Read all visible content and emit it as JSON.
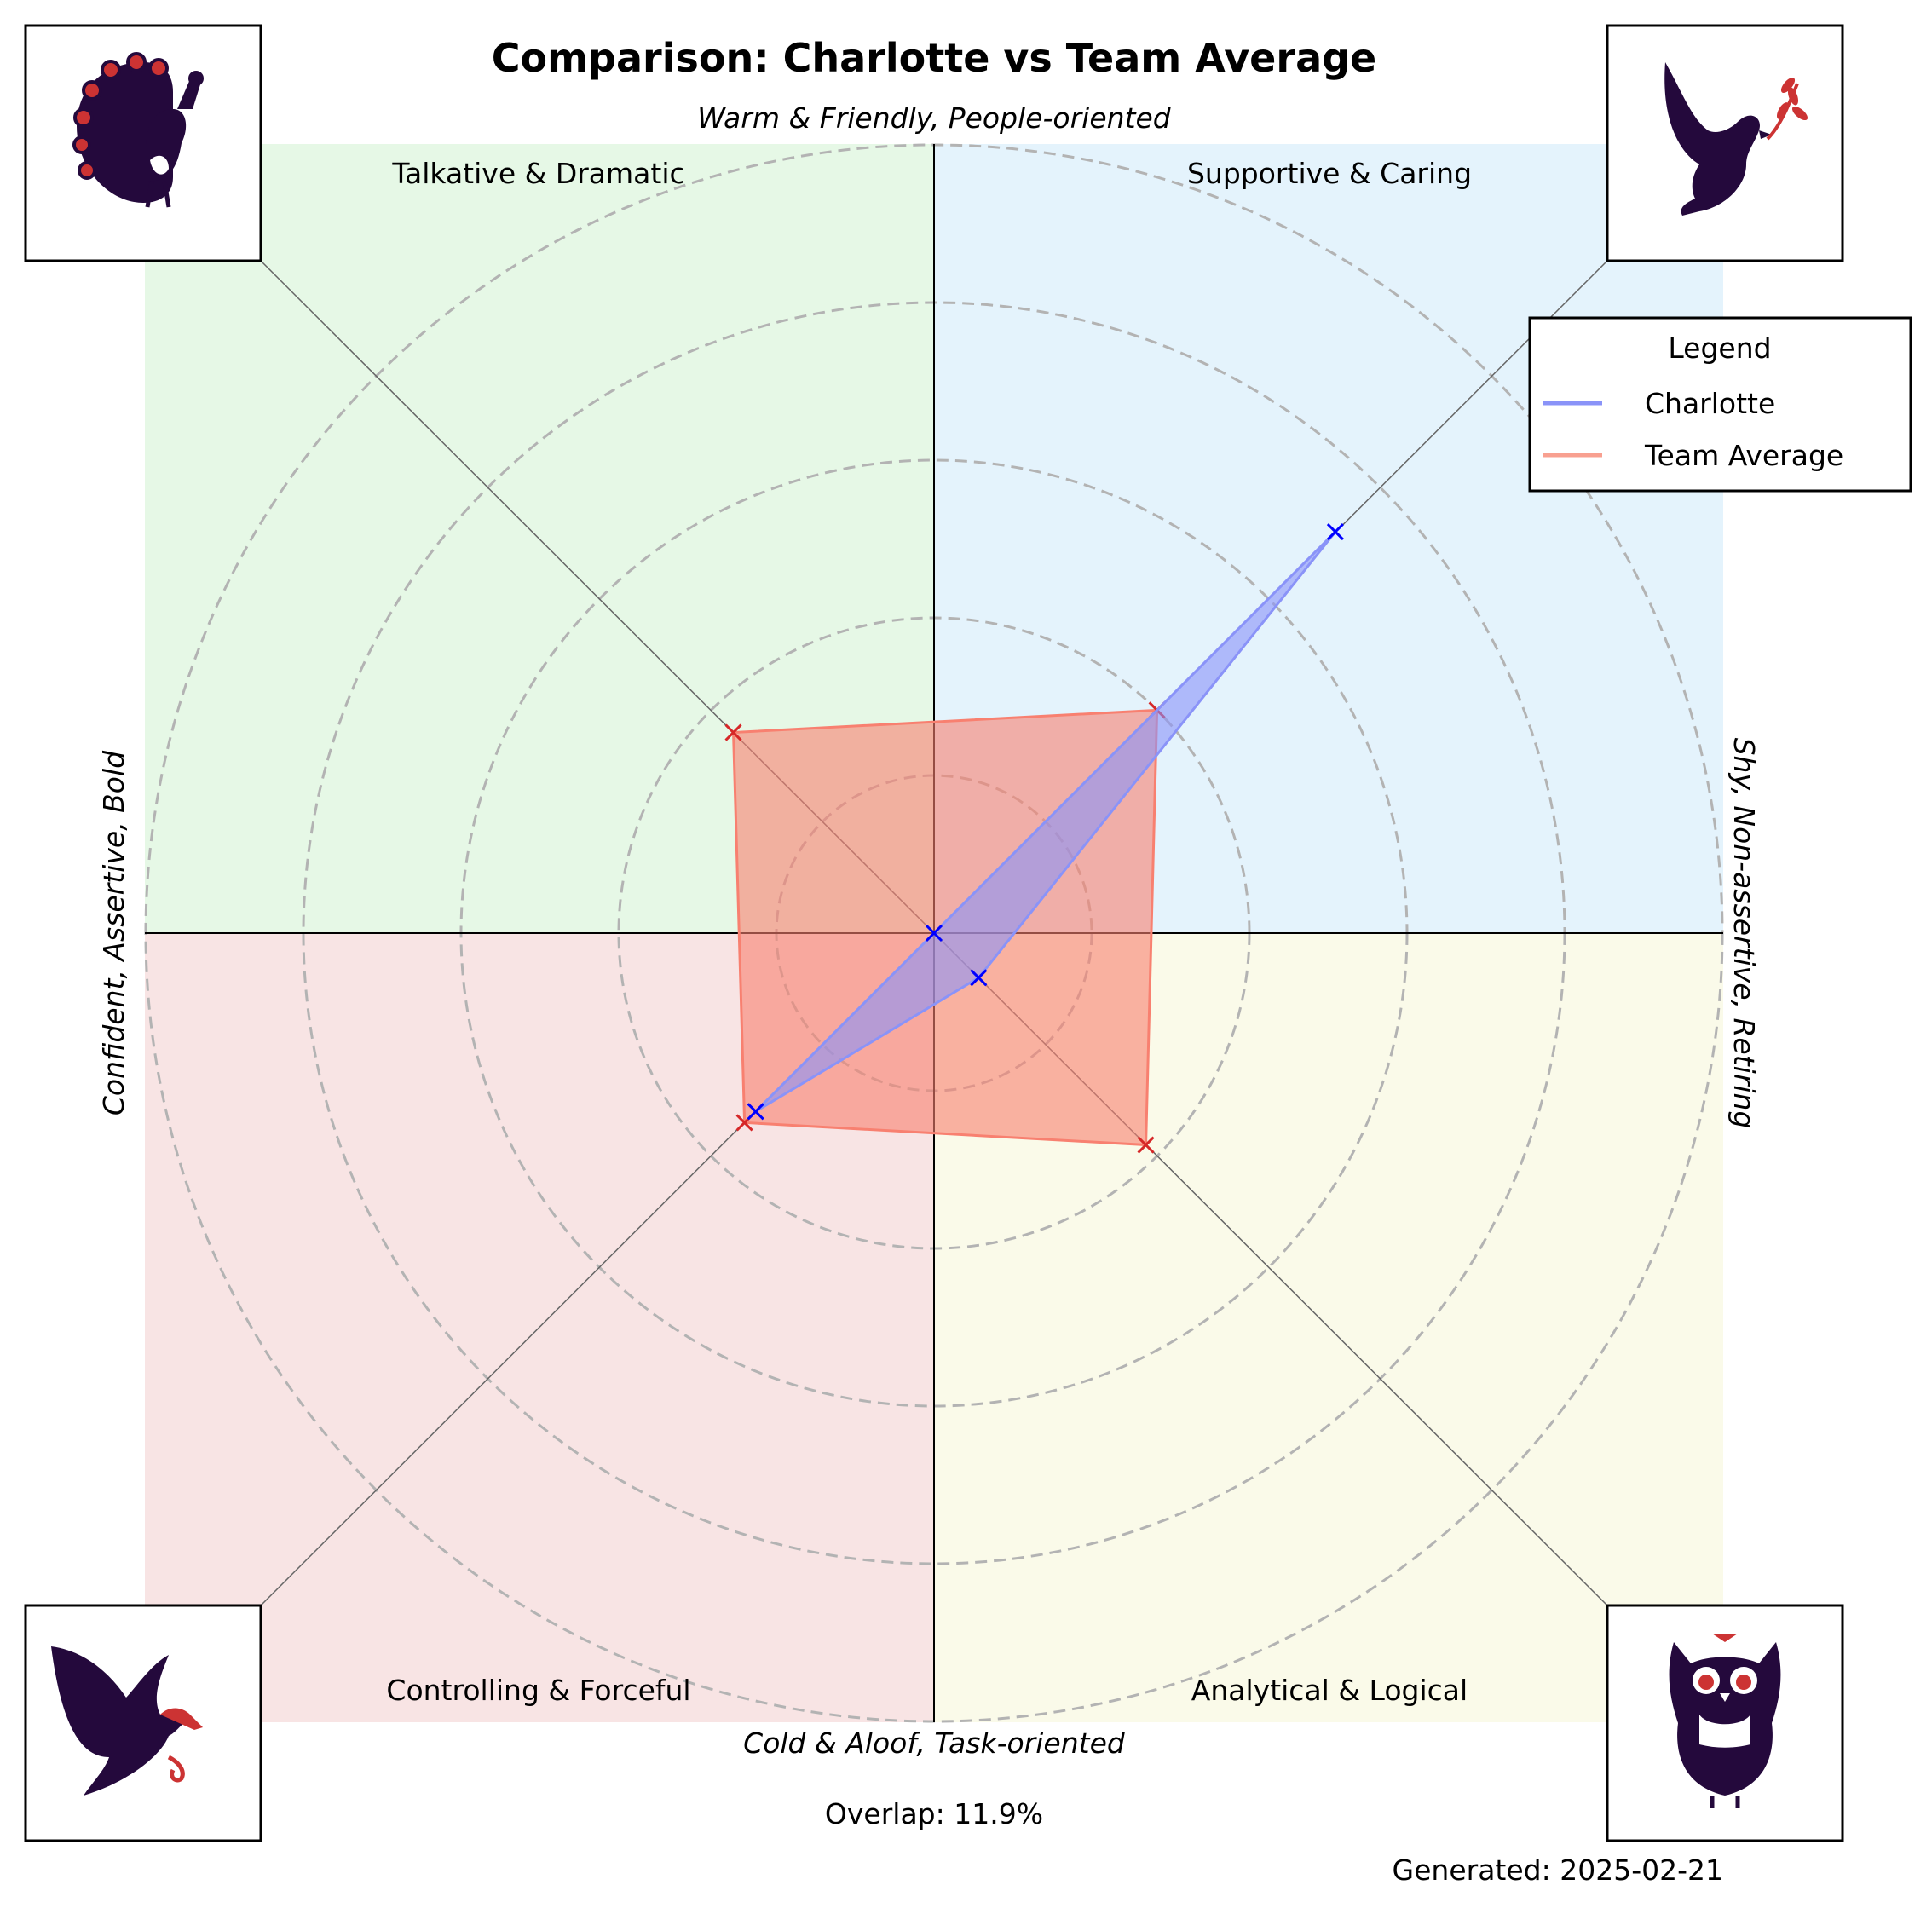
{
  "title": "Comparison: Charlotte vs Team Average",
  "axes": {
    "top": "Warm & Friendly, People-oriented",
    "bottom": "Cold & Aloof, Task-oriented",
    "left": "Confident, Assertive, Bold",
    "right": "Shy, Non-assertive, Retiring"
  },
  "quadrants": [
    {
      "id": "top-left",
      "label": "Talkative & Dramatic",
      "color": "#e6f8e6",
      "icon": "peacock-icon"
    },
    {
      "id": "top-right",
      "label": "Supportive & Caring",
      "color": "#e4f3fc",
      "icon": "dove-icon"
    },
    {
      "id": "bottom-left",
      "label": "Controlling & Forceful",
      "color": "#f8e4e4",
      "icon": "eagle-icon"
    },
    {
      "id": "bottom-right",
      "label": "Analytical & Logical",
      "color": "#fafae9",
      "icon": "owl-icon"
    }
  ],
  "legend": {
    "title": "Legend",
    "entries": [
      {
        "name": "Charlotte",
        "color": "#8a93f8"
      },
      {
        "name": "Team Average",
        "color": "#f8a090"
      }
    ]
  },
  "overlap_text": "Overlap: 11.9%",
  "generated_text": "Generated: 2025-02-21",
  "colors": {
    "icon_dark": "#24093c",
    "icon_accent": "#cc3333"
  },
  "chart_data": {
    "type": "radar",
    "axes_order": [
      "Supportive & Caring",
      "Talkative & Dramatic",
      "Controlling & Forceful",
      "Analytical & Logical"
    ],
    "rings": [
      1,
      2,
      3,
      4,
      5
    ],
    "rlim": [
      0,
      5
    ],
    "grid": true,
    "legend_position": "top-right",
    "series": [
      {
        "name": "Charlotte",
        "color": "#0000ff",
        "fill": "#8a93f8",
        "values": [
          3.6,
          0.0,
          1.6,
          0.4
        ]
      },
      {
        "name": "Team Average",
        "color": "#d62728",
        "fill": "#f88070",
        "values": [
          2.0,
          1.8,
          1.7,
          1.9
        ]
      }
    ]
  }
}
